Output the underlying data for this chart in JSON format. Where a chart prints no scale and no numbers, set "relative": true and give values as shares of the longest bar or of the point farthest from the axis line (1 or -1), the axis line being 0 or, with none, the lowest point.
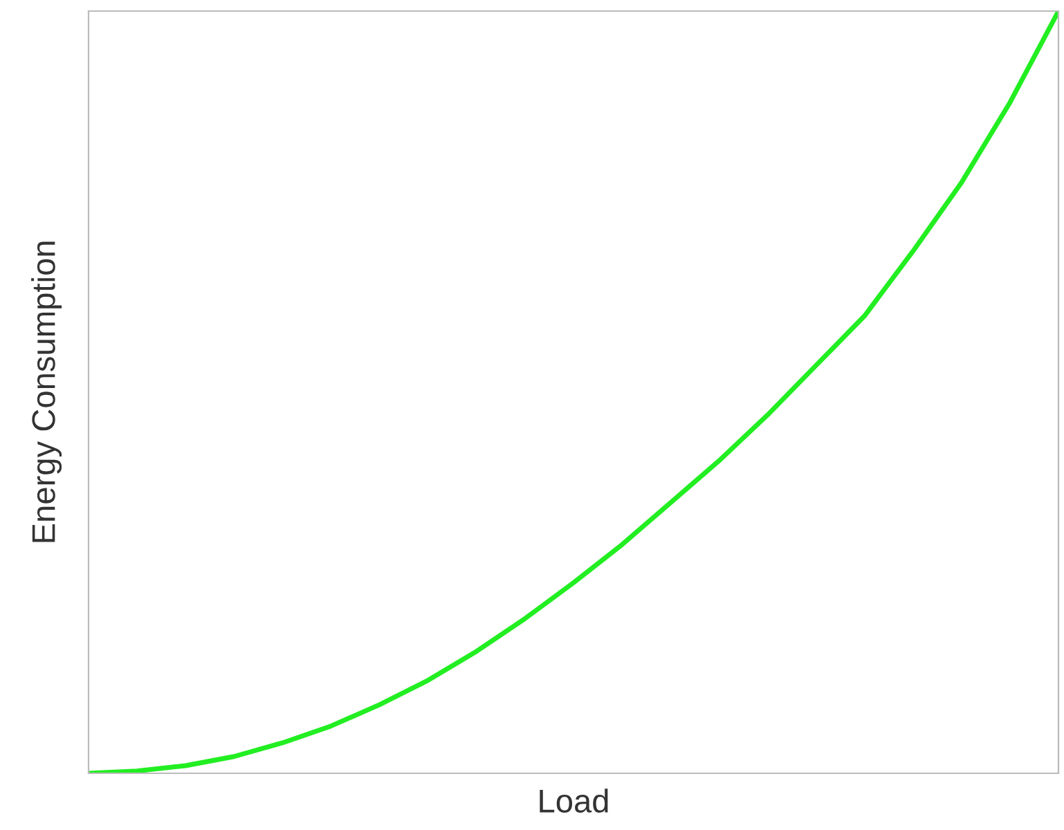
{
  "chart_data": {
    "type": "line",
    "relative": true,
    "xlabel": "Load",
    "ylabel": "Energy Consumption",
    "legend": false,
    "marker": "none",
    "line_style": "solid",
    "categories": [
      null,
      null,
      null,
      null,
      null,
      null,
      null,
      null,
      null,
      null,
      null,
      null,
      null,
      null,
      null,
      null,
      null,
      null,
      null,
      null,
      null
    ],
    "series": [
      {
        "color": "#22ee22",
        "values": [
          0,
          0.003,
          0.01,
          0.022,
          0.04,
          0.062,
          0.09,
          0.122,
          0.16,
          0.203,
          0.25,
          0.3,
          0.355,
          0.41,
          0.47,
          0.535,
          0.6,
          0.685,
          0.775,
          0.88,
          1
        ]
      }
    ]
  }
}
